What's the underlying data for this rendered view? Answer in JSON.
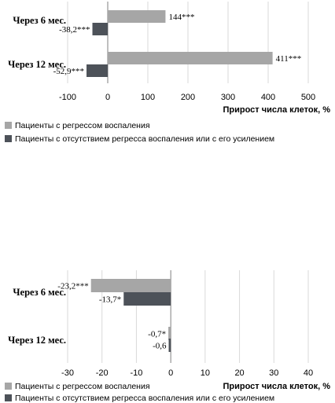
{
  "colors": {
    "series_1": "#a6a6a6",
    "series_2": "#4d5259",
    "grid": "#d9d9d9",
    "axis": "#7f7f7f",
    "text": "#000000"
  },
  "chart_data": [
    {
      "type": "bar",
      "orientation": "horizontal",
      "categories": [
        "Через 6 мес.",
        "Через 12 мес."
      ],
      "series": [
        {
          "name": "Пациенты с регрессом воспаления",
          "values": [
            144,
            411
          ],
          "labels": [
            "144***",
            "411***"
          ]
        },
        {
          "name": "Пациенты с отсутствием регресса воспаления или с его усилением",
          "values": [
            -38.2,
            -52.9
          ],
          "labels": [
            "-38,2***",
            "-52,9***"
          ]
        }
      ],
      "xlabel": "Прирост числа клеток, %",
      "xlim": [
        -100,
        500
      ],
      "xticks": [
        "-100",
        "0",
        "100",
        "200",
        "300",
        "400",
        "500"
      ],
      "grid": true,
      "legend": "bottom-left"
    },
    {
      "type": "bar",
      "orientation": "horizontal",
      "categories": [
        "Через 6 мес.",
        "Через 12 мес."
      ],
      "series": [
        {
          "name": "Пациенты с регрессом воспаления",
          "values": [
            -23.2,
            -0.7
          ],
          "labels": [
            "-23,2***",
            "-0,7*"
          ]
        },
        {
          "name": "Пациенты с отсутствием регресса воспаления или с его усилением",
          "values": [
            -13.7,
            -0.6
          ],
          "labels": [
            "-13,7*",
            "-0,6"
          ]
        }
      ],
      "xlabel": "Прирост числа клеток, %",
      "xlim": [
        -30,
        40
      ],
      "xticks": [
        "-30",
        "-20",
        "-10",
        "0",
        "10",
        "20",
        "30",
        "40"
      ],
      "grid": true,
      "legend": "bottom-left"
    }
  ]
}
